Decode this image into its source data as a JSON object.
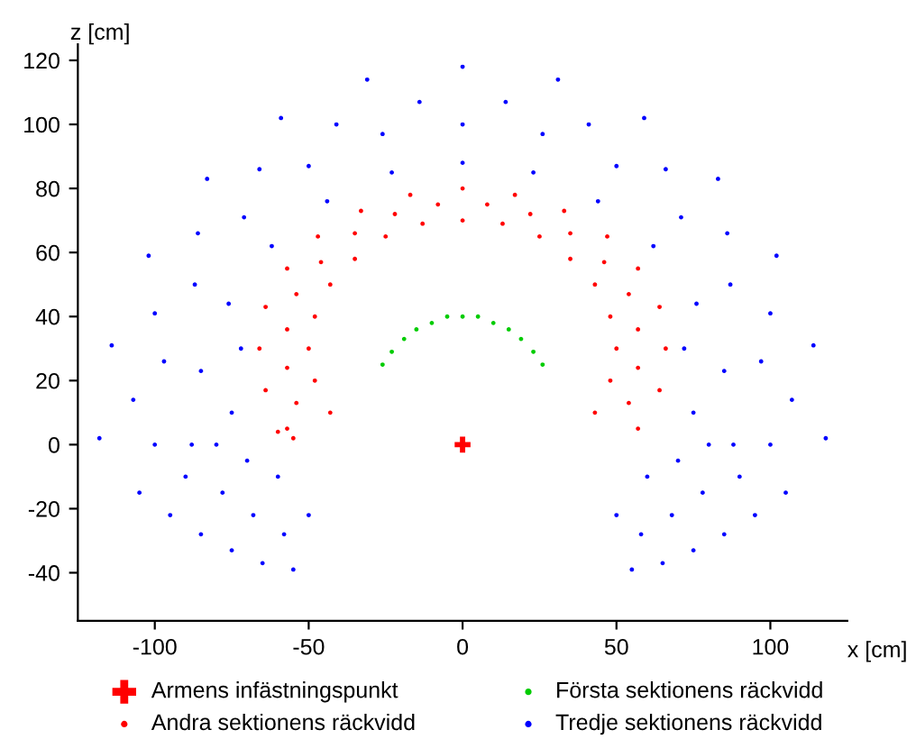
{
  "chart_data": {
    "type": "scatter",
    "xlabel": "x [cm]",
    "ylabel": "z [cm]",
    "xlim": [
      -125,
      125
    ],
    "ylim": [
      -55,
      125
    ],
    "xticks": [
      -100,
      -50,
      0,
      50,
      100
    ],
    "yticks": [
      -40,
      -20,
      0,
      20,
      40,
      60,
      80,
      100,
      120
    ],
    "grid": false,
    "legend": "bottom",
    "series": [
      {
        "name": "Tredje sektionens räckvidd",
        "color": "#0000ff",
        "marker": "circle",
        "x": [
          0,
          31,
          59,
          83,
          102,
          114,
          118,
          0,
          26,
          50,
          71,
          87,
          97,
          100,
          0,
          23,
          44,
          62,
          76,
          85,
          88,
          14,
          41,
          66,
          86,
          100,
          107,
          72,
          75,
          105,
          95,
          85,
          75,
          65,
          55,
          90,
          78,
          68,
          58,
          50,
          60,
          70,
          80,
          -31,
          -59,
          -83,
          -102,
          -114,
          -118,
          -26,
          -50,
          -71,
          -87,
          -97,
          -100,
          -23,
          -44,
          -62,
          -76,
          -85,
          -88,
          -14,
          -41,
          -66,
          -86,
          -100,
          -107,
          -72,
          -75,
          -105,
          -95,
          -85,
          -75,
          -65,
          -55,
          -90,
          -78,
          -68,
          -58,
          -50,
          -60,
          -70,
          -80
        ],
        "values": [
          118,
          114,
          102,
          83,
          59,
          31,
          2,
          100,
          97,
          87,
          71,
          50,
          26,
          0,
          88,
          85,
          76,
          62,
          44,
          23,
          0,
          107,
          100,
          86,
          66,
          41,
          14,
          30,
          10,
          -15,
          -22,
          -28,
          -33,
          -37,
          -39,
          -10,
          -15,
          -22,
          -28,
          -22,
          -10,
          -5,
          0,
          114,
          102,
          83,
          59,
          31,
          2,
          97,
          87,
          71,
          50,
          26,
          0,
          85,
          76,
          62,
          44,
          23,
          0,
          107,
          100,
          86,
          66,
          41,
          14,
          30,
          10,
          -15,
          -22,
          -28,
          -33,
          -37,
          -39,
          -10,
          -15,
          -22,
          -28,
          -22,
          -10,
          -5,
          0
        ]
      },
      {
        "name": "Andra sektionens räckvidd",
        "color": "#ff0000",
        "marker": "circle",
        "x": [
          0,
          17,
          33,
          47,
          57,
          64,
          66,
          64,
          57,
          0,
          13,
          25,
          35,
          43,
          48,
          50,
          48,
          43,
          8,
          22,
          35,
          46,
          54,
          57,
          57,
          54,
          -17,
          -33,
          -47,
          -57,
          -64,
          -66,
          -64,
          -57,
          -13,
          -25,
          -35,
          -43,
          -48,
          -50,
          -48,
          -43,
          -8,
          -22,
          -35,
          -46,
          -54,
          -57,
          -57,
          -54,
          -55,
          -60
        ],
        "values": [
          80,
          78,
          73,
          65,
          55,
          43,
          30,
          17,
          5,
          70,
          69,
          65,
          58,
          50,
          40,
          30,
          20,
          10,
          75,
          72,
          66,
          57,
          47,
          36,
          24,
          13,
          78,
          73,
          65,
          55,
          43,
          30,
          17,
          5,
          69,
          65,
          58,
          50,
          40,
          30,
          20,
          10,
          75,
          72,
          66,
          57,
          47,
          36,
          24,
          13,
          2,
          4
        ]
      },
      {
        "name": "Första sektionens räckvidd",
        "color": "#00cc00",
        "marker": "circle",
        "x": [
          26,
          23,
          19,
          15,
          10,
          5,
          0,
          -5,
          -10,
          -15,
          -19,
          -23,
          -26
        ],
        "values": [
          25,
          29,
          33,
          36,
          38,
          40,
          40,
          40,
          38,
          36,
          33,
          29,
          25
        ]
      },
      {
        "name": "Armens infästningspunkt",
        "color": "#ff0000",
        "marker": "cross",
        "x": [
          0
        ],
        "values": [
          0
        ]
      }
    ]
  }
}
